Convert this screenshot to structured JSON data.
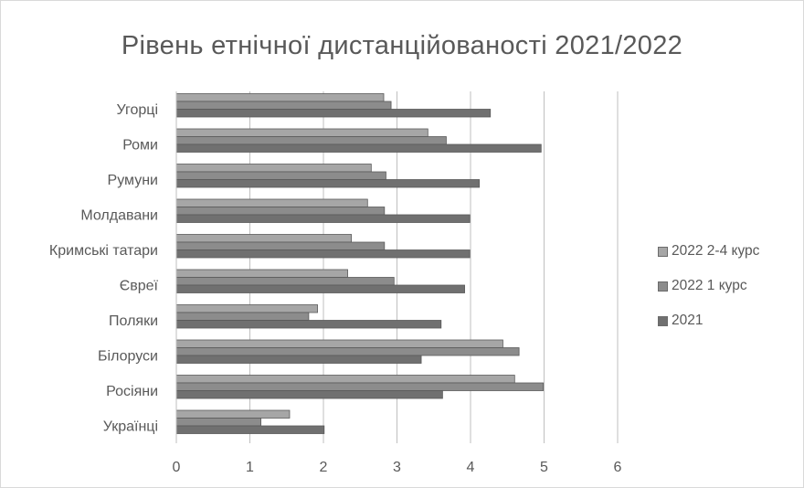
{
  "chart_data": {
    "type": "bar",
    "orientation": "horizontal",
    "title": "Рівень етнічної дистанційованості  2021/2022",
    "xlabel": "",
    "ylabel": "",
    "xlim": [
      0,
      6
    ],
    "x_ticks": [
      "0",
      "1",
      "2",
      "3",
      "4",
      "5",
      "6"
    ],
    "grid": "vertical major gridlines",
    "legend_position": "right",
    "categories": [
      "Угорці",
      "Роми",
      "Румуни",
      "Молдавани",
      "Кримські татари",
      "Євреї",
      "Поляки",
      "Білоруси",
      "Росіяни",
      "Українці"
    ],
    "series": [
      {
        "name": "2022 2-4 курс",
        "color": "#a6a6a6",
        "values": [
          2.82,
          3.42,
          2.65,
          2.6,
          2.38,
          2.33,
          1.92,
          4.44,
          4.6,
          1.54
        ]
      },
      {
        "name": "2022 1 курс",
        "color": "#8c8c8c",
        "values": [
          2.92,
          3.67,
          2.85,
          2.83,
          2.83,
          2.96,
          1.8,
          4.66,
          4.99,
          1.15
        ]
      },
      {
        "name": "2021",
        "color": "#707070",
        "values": [
          4.27,
          4.96,
          4.12,
          3.99,
          3.99,
          3.92,
          3.6,
          3.33,
          3.62,
          2.01
        ]
      }
    ]
  }
}
